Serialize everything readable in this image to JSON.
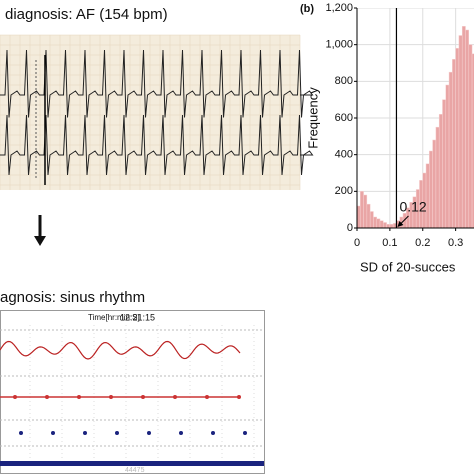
{
  "left": {
    "title_top": "diagnosis: AF (154 bpm)",
    "title_bottom": "agnosis: sinus rhythm",
    "time_label": "Time[hr:min:S]",
    "time": "12:21:15",
    "footer": "44475"
  },
  "chart_data": {
    "type": "histogram",
    "panel_label": "(b)",
    "ylabel": "Frequency",
    "xlabel": "SD of 20-succes",
    "bins": [
      0,
      0.01,
      0.02,
      0.03,
      0.04,
      0.05,
      0.06,
      0.07,
      0.08,
      0.09,
      0.1,
      0.11,
      0.12,
      0.13,
      0.14,
      0.15,
      0.16,
      0.17,
      0.18,
      0.19,
      0.2,
      0.21,
      0.22,
      0.23,
      0.24,
      0.25,
      0.26,
      0.27,
      0.28,
      0.29,
      0.3,
      0.31,
      0.32,
      0.33,
      0.34,
      0.35,
      0.36
    ],
    "values": [
      120,
      200,
      180,
      130,
      90,
      60,
      50,
      40,
      30,
      20,
      20,
      25,
      40,
      60,
      80,
      110,
      140,
      170,
      210,
      260,
      300,
      350,
      420,
      480,
      550,
      620,
      700,
      780,
      850,
      920,
      980,
      1050,
      1100,
      1080,
      1000,
      950
    ],
    "color": "#e9a5a5",
    "xlim": [
      0,
      0.365
    ],
    "xticks": [
      0,
      0.1,
      0.2,
      0.3
    ],
    "ylim": [
      0,
      1200
    ],
    "yticks": [
      0,
      200,
      400,
      600,
      800,
      {
        "value": 1000,
        "label": "1,000"
      },
      {
        "value": 1200,
        "label": "1,200"
      }
    ],
    "grid": true,
    "threshold": 0.12
  }
}
